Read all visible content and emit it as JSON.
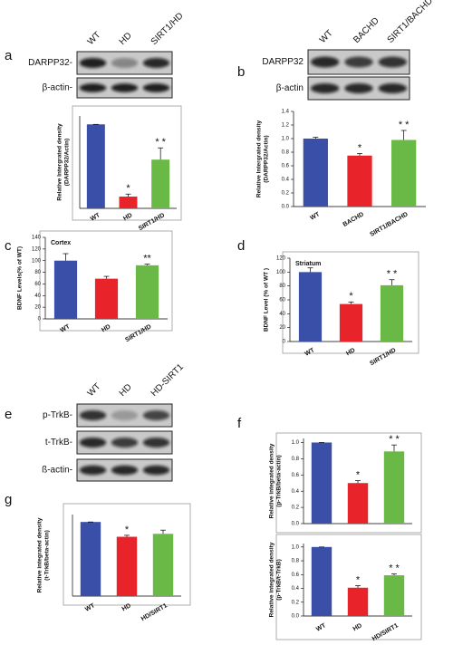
{
  "panel_labels": [
    "a",
    "b",
    "c",
    "d",
    "e",
    "f",
    "g"
  ],
  "blots": [
    {
      "lanes": [
        "WT",
        "HD",
        "SIRT1/HD"
      ],
      "rows": [
        "DARPP32-",
        "β-actin-"
      ]
    },
    {
      "lanes": [
        "WT",
        "BACHD",
        "SIRT1/BACHD"
      ],
      "rows": [
        "DARPP32",
        "β-actin"
      ]
    },
    {
      "lanes": [
        "WT",
        "HD",
        "HD-SIRT1"
      ],
      "rows": [
        "p-TrkB-",
        "t-TrkB-",
        "ß-actin-"
      ]
    }
  ],
  "chart_data": [
    {
      "type": "bar",
      "y_label": [
        "Relative Intergrated density",
        "(DARPP32/Actin)"
      ],
      "categories": [
        "WT",
        "HD",
        "SIRT1/HD"
      ],
      "values": [
        1.0,
        0.14,
        0.58
      ],
      "errors": [
        0,
        0.03,
        0.14
      ],
      "colors": [
        "#3a4fa8",
        "#e8242a",
        "#6ab845"
      ],
      "annotations": [
        null,
        "*",
        "* *"
      ],
      "ylim": [
        0,
        1.1
      ]
    },
    {
      "type": "bar",
      "y_label": [
        "Relative Intergrated density",
        "(DARPP32/Actin)"
      ],
      "categories": [
        "WT",
        "BACHD",
        "SIRT1/BACHD"
      ],
      "values": [
        1.0,
        0.75,
        0.98
      ],
      "errors": [
        0.02,
        0.03,
        0.14
      ],
      "colors": [
        "#3a4fa8",
        "#e8242a",
        "#6ab845"
      ],
      "annotations": [
        null,
        "*",
        "* *"
      ],
      "ylim": [
        0,
        1.4
      ],
      "yticks": [
        {
          "value": 0,
          "label": "0.0"
        },
        0.2,
        0.4,
        0.6,
        0.8,
        {
          "value": 1,
          "label": "1.0"
        },
        1.2,
        1.4
      ]
    },
    {
      "type": "bar",
      "title": "Cortex",
      "y_label": [
        "BDNF Levels(% of WT)"
      ],
      "categories": [
        "WT",
        "HD",
        "SIRT1/HD"
      ],
      "values": [
        100,
        69,
        92
      ],
      "errors": [
        12,
        4,
        2
      ],
      "colors": [
        "#3a4fa8",
        "#e8242a",
        "#6ab845"
      ],
      "annotations": [
        null,
        null,
        "**"
      ],
      "ylim": [
        0,
        140
      ],
      "yticks": [
        0,
        20,
        40,
        60,
        80,
        100,
        120,
        140
      ]
    },
    {
      "type": "bar",
      "title": "Striatum",
      "y_label": [
        "BDNF Level (% of WT )"
      ],
      "categories": [
        "WT",
        "HD",
        "SIRT1/HD"
      ],
      "values": [
        100,
        54,
        81
      ],
      "errors": [
        6,
        3,
        8
      ],
      "colors": [
        "#3a4fa8",
        "#e8242a",
        "#6ab845"
      ],
      "annotations": [
        null,
        "*",
        "* *"
      ],
      "ylim": [
        0,
        120
      ],
      "yticks": [
        0,
        20,
        40,
        60,
        80,
        100,
        120
      ]
    },
    {
      "type": "bar",
      "y_label": [
        "Relative integrated density",
        "(p-TrkB/beta-actin)"
      ],
      "values": [
        1.0,
        0.5,
        0.89
      ],
      "errors": [
        0,
        0.03,
        0.08
      ],
      "colors": [
        "#3a4fa8",
        "#e8242a",
        "#6ab845"
      ],
      "annotations": [
        null,
        "*",
        "* *"
      ],
      "ylim": [
        0,
        1.05
      ],
      "yticks": [
        {
          "value": 0,
          "label": "0.0"
        },
        0.2,
        0.4,
        0.6,
        0.8,
        {
          "value": 1,
          "label": "1.0"
        }
      ]
    },
    {
      "type": "bar",
      "y_label": [
        "Relative integrated density",
        "(p-TrkB/t-TrkB)"
      ],
      "categories": [
        "WT",
        "HD",
        "HD/SIRT1"
      ],
      "values": [
        1.0,
        0.41,
        0.59
      ],
      "errors": [
        0,
        0.03,
        0.02
      ],
      "colors": [
        "#3a4fa8",
        "#e8242a",
        "#6ab845"
      ],
      "annotations": [
        null,
        "*",
        "* *"
      ],
      "ylim": [
        0,
        1.05
      ],
      "yticks": [
        {
          "value": 0,
          "label": "0.0"
        },
        0.2,
        0.4,
        0.6,
        0.8,
        {
          "value": 1,
          "label": "1.0"
        }
      ]
    },
    {
      "type": "bar",
      "y_label": [
        "Relative integrated density",
        "(t-TrkB/beta-actin)"
      ],
      "categories": [
        "WT",
        "HD",
        "HD/SIRT1"
      ],
      "values": [
        1.0,
        0.8,
        0.84
      ],
      "errors": [
        0,
        0.02,
        0.05
      ],
      "colors": [
        "#3a4fa8",
        "#e8242a",
        "#6ab845"
      ],
      "annotations": [
        null,
        "*",
        null
      ],
      "ylim": [
        0,
        1.1
      ]
    }
  ]
}
